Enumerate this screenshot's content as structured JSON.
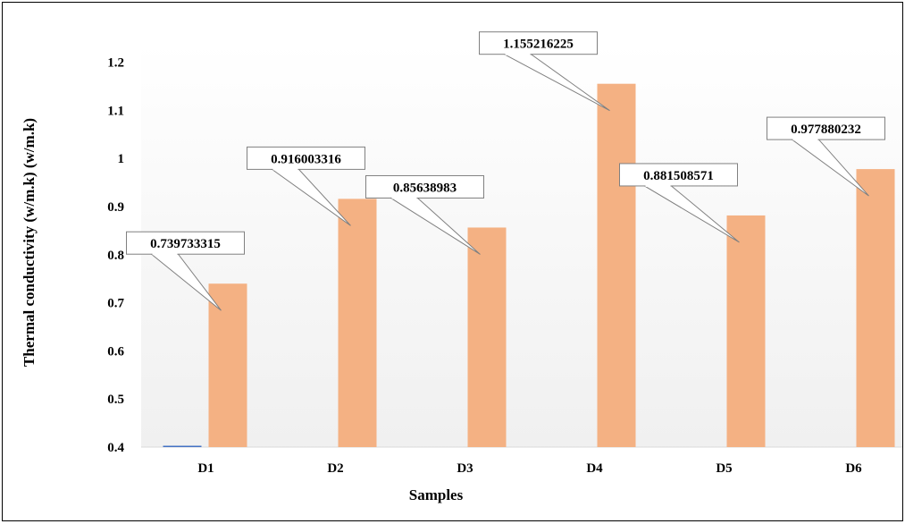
{
  "chart_data": {
    "type": "bar",
    "xlabel": "Samples",
    "ylabel": "Thermal conductivity (w/m.k) (w/m.k)",
    "categories": [
      "D1",
      "D2",
      "D3",
      "D4",
      "D5",
      "D6"
    ],
    "series": [
      {
        "values": [
          0.4,
          0.4,
          0.4,
          0.4,
          0.4,
          0.4
        ],
        "color": "#4472c4"
      },
      {
        "values": [
          0.739733315,
          0.916003316,
          0.85638983,
          1.155216225,
          0.881508571,
          0.977880232
        ],
        "data_labels": [
          "0.739733315",
          "0.916003316",
          "0.85638983",
          "1.155216225",
          "0.881508571",
          "0.977880232"
        ],
        "color": "#f4b183"
      }
    ],
    "yticks": [
      "0.4",
      "0.5",
      "0.6",
      "0.7",
      "0.8",
      "0.9",
      "1",
      "1.1",
      "1.2"
    ],
    "ylim": [
      0.4,
      1.25
    ],
    "grid": false,
    "legend": "none"
  }
}
